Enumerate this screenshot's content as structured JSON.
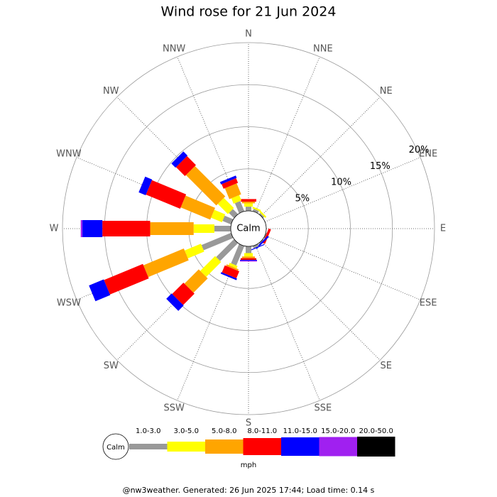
{
  "chart_data": {
    "type": "windrose",
    "title": "Wind rose for 21 Jun 2024",
    "directions": [
      "N",
      "NNE",
      "NE",
      "ENE",
      "E",
      "ESE",
      "SE",
      "SSE",
      "S",
      "SSW",
      "SW",
      "WSW",
      "W",
      "WNW",
      "NW",
      "NNW"
    ],
    "calm_label": "Calm",
    "unit_label": "mph",
    "rlim": [
      0,
      20
    ],
    "rticks": [
      {
        "value": 5,
        "label": "5%"
      },
      {
        "value": 10,
        "label": "10%"
      },
      {
        "value": 15,
        "label": "15%"
      },
      {
        "value": 20,
        "label": "20%"
      }
    ],
    "series": [
      {
        "name": "1.0-3.0",
        "color": "#999999",
        "values": [
          0.5,
          0.3,
          0.2,
          0,
          0,
          0.1,
          0.1,
          0.3,
          0.8,
          2.5,
          3.0,
          3.8,
          1.95,
          1.1,
          0.85,
          1.3
        ]
      },
      {
        "name": "3.0-5.0",
        "color": "#ffff00",
        "values": [
          0.4,
          0.2,
          0.2,
          0,
          0,
          0,
          0,
          0,
          0.4,
          0.3,
          2.5,
          2.1,
          2.46,
          1.4,
          1.7,
          0.7
        ]
      },
      {
        "name": "5.0-8.0",
        "color": "#ffa500",
        "values": [
          0.2,
          0,
          0,
          0,
          0,
          0,
          0,
          0,
          0.2,
          0.2,
          2.4,
          5.2,
          5.17,
          3.8,
          5.1,
          1.4
        ]
      },
      {
        "name": "8.0-11.0",
        "color": "#ff0000",
        "values": [
          0.3,
          0,
          0,
          0,
          0,
          0.3,
          0,
          0,
          0.2,
          0.9,
          1.9,
          5.0,
          5.68,
          4.4,
          1.5,
          0.6
        ]
      },
      {
        "name": "11.0-15.0",
        "color": "#0000ff",
        "values": [
          0,
          0,
          0,
          0,
          0,
          0,
          0.2,
          0.1,
          0.1,
          0.2,
          0.9,
          1.9,
          2.37,
          0.9,
          0.7,
          0.3
        ]
      },
      {
        "name": "15.0-20.0",
        "color": "#a020f0",
        "values": [
          0,
          0,
          0,
          0,
          0,
          0,
          0,
          0,
          0.1,
          0,
          0,
          0,
          0.2,
          0,
          0,
          0
        ]
      },
      {
        "name": "20.0-50.0",
        "color": "#000000",
        "values": [
          0,
          0,
          0,
          0,
          0,
          0,
          0,
          0,
          0,
          0,
          0,
          0,
          0,
          0,
          0,
          0
        ]
      }
    ]
  },
  "footer": "@nw3weather.  Generated: 26 Jun 2025 17:44; Load time: 0.14 s"
}
